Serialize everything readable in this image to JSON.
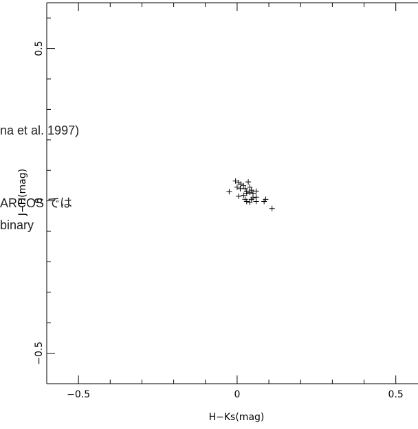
{
  "chart_data": {
    "type": "scatter",
    "xlabel": "H−Ks(mag)",
    "ylabel": "J−H(mag)",
    "xlim": [
      -0.6,
      0.57
    ],
    "ylim": [
      -0.6,
      0.65
    ],
    "xticks": [
      -0.5,
      0,
      0.5
    ],
    "xtick_labels": [
      "−0.5",
      "0",
      "0.5"
    ],
    "yticks": [
      -0.5,
      0,
      0.5
    ],
    "ytick_labels": [
      "−0.5",
      "0",
      "0.5"
    ],
    "marker": "+",
    "grid": false,
    "points": [
      {
        "x": -0.005,
        "y": 0.065
      },
      {
        "x": 0.005,
        "y": 0.06
      },
      {
        "x": 0.012,
        "y": 0.055
      },
      {
        "x": 0.02,
        "y": 0.05
      },
      {
        "x": 0.035,
        "y": 0.062
      },
      {
        "x": 0.04,
        "y": 0.045
      },
      {
        "x": 0.0,
        "y": 0.045
      },
      {
        "x": 0.01,
        "y": 0.04
      },
      {
        "x": 0.025,
        "y": 0.04
      },
      {
        "x": 0.045,
        "y": 0.035
      },
      {
        "x": 0.06,
        "y": 0.032
      },
      {
        "x": -0.025,
        "y": 0.03
      },
      {
        "x": 0.03,
        "y": 0.03
      },
      {
        "x": 0.04,
        "y": 0.028
      },
      {
        "x": 0.03,
        "y": 0.025
      },
      {
        "x": 0.05,
        "y": 0.025
      },
      {
        "x": 0.005,
        "y": 0.015
      },
      {
        "x": 0.02,
        "y": 0.018
      },
      {
        "x": 0.05,
        "y": 0.01
      },
      {
        "x": 0.06,
        "y": 0.012
      },
      {
        "x": 0.025,
        "y": 0.005
      },
      {
        "x": 0.045,
        "y": 0.005
      },
      {
        "x": 0.09,
        "y": 0.005
      },
      {
        "x": 0.03,
        "y": -0.002
      },
      {
        "x": 0.04,
        "y": -0.005
      },
      {
        "x": 0.06,
        "y": -0.002
      },
      {
        "x": 0.085,
        "y": -0.002
      },
      {
        "x": 0.11,
        "y": -0.025
      }
    ]
  },
  "overlay_texts": {
    "line1": "na et al. 1997)",
    "line2": "ARCOS では",
    "line3": "binary"
  }
}
